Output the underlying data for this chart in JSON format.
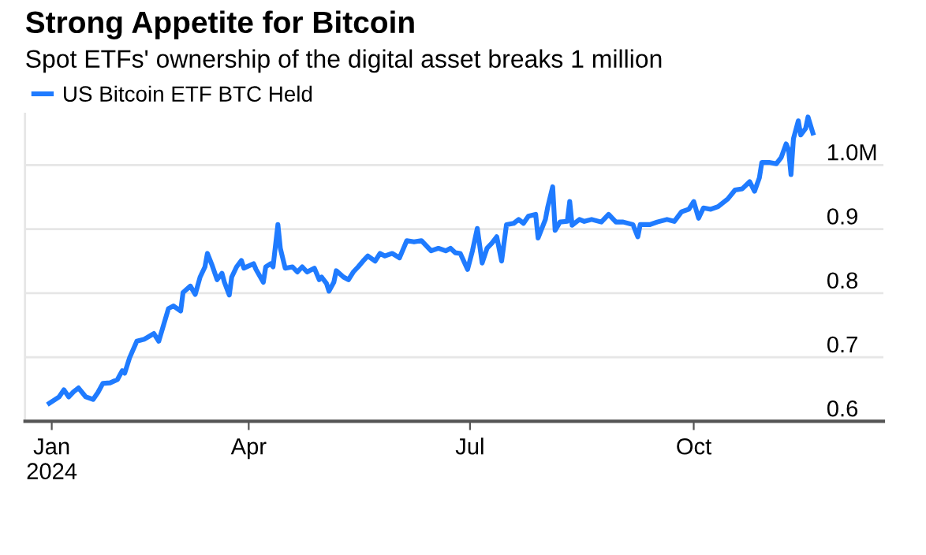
{
  "chart_data": {
    "type": "line",
    "title": "Strong Appetite for Bitcoin",
    "subtitle": "Spot ETFs' ownership of the digital asset breaks 1 million",
    "x": [
      "2024-01-10",
      "2024-01-14",
      "2024-01-16",
      "2024-01-18",
      "2024-01-20",
      "2024-01-22",
      "2024-01-25",
      "2024-01-28",
      "2024-01-30",
      "2024-02-01",
      "2024-02-04",
      "2024-02-07",
      "2024-02-09",
      "2024-02-10",
      "2024-02-12",
      "2024-02-15",
      "2024-02-18",
      "2024-02-22",
      "2024-02-24",
      "2024-02-28",
      "2024-03-01",
      "2024-03-04",
      "2024-03-05",
      "2024-03-08",
      "2024-03-10",
      "2024-03-12",
      "2024-03-14",
      "2024-03-15",
      "2024-03-17",
      "2024-03-19",
      "2024-03-21",
      "2024-03-22",
      "2024-03-24",
      "2024-03-25",
      "2024-03-27",
      "2024-03-29",
      "2024-03-30",
      "2024-04-03",
      "2024-04-04",
      "2024-04-07",
      "2024-04-08",
      "2024-04-10",
      "2024-04-11",
      "2024-04-13",
      "2024-04-14",
      "2024-04-16",
      "2024-04-19",
      "2024-04-21",
      "2024-04-23",
      "2024-04-25",
      "2024-04-28",
      "2024-04-30",
      "2024-05-01",
      "2024-05-03",
      "2024-05-04",
      "2024-05-06",
      "2024-05-07",
      "2024-05-10",
      "2024-05-12",
      "2024-05-14",
      "2024-05-16",
      "2024-05-18",
      "2024-05-20",
      "2024-05-23",
      "2024-05-25",
      "2024-05-27",
      "2024-05-30",
      "2024-06-02",
      "2024-06-05",
      "2024-06-08",
      "2024-06-11",
      "2024-06-13",
      "2024-06-15",
      "2024-06-18",
      "2024-06-21",
      "2024-06-23",
      "2024-06-25",
      "2024-06-27",
      "2024-06-30",
      "2024-07-02",
      "2024-07-04",
      "2024-07-06",
      "2024-07-08",
      "2024-07-10",
      "2024-07-12",
      "2024-07-14",
      "2024-07-16",
      "2024-07-19",
      "2024-07-21",
      "2024-07-23",
      "2024-07-25",
      "2024-07-28",
      "2024-07-29",
      "2024-08-01",
      "2024-08-02",
      "2024-08-04",
      "2024-08-05",
      "2024-08-07",
      "2024-08-10",
      "2024-08-11",
      "2024-08-12",
      "2024-08-15",
      "2024-08-17",
      "2024-08-20",
      "2024-08-24",
      "2024-08-27",
      "2024-08-30",
      "2024-09-02",
      "2024-09-06",
      "2024-09-08",
      "2024-09-09",
      "2024-09-13",
      "2024-09-16",
      "2024-09-20",
      "2024-09-23",
      "2024-09-26",
      "2024-09-29",
      "2024-10-01",
      "2024-10-03",
      "2024-10-05",
      "2024-10-08",
      "2024-10-11",
      "2024-10-15",
      "2024-10-18",
      "2024-10-21",
      "2024-10-24",
      "2024-10-26",
      "2024-10-28",
      "2024-10-29",
      "2024-11-01",
      "2024-11-04",
      "2024-11-06",
      "2024-11-08",
      "2024-11-09",
      "2024-11-10",
      "2024-11-11",
      "2024-11-13",
      "2024-11-14",
      "2024-11-16",
      "2024-11-17",
      "2024-11-19"
    ],
    "series": [
      {
        "name": "US Bitcoin ETF BTC Held",
        "color": "#1f7bff",
        "values": [
          0.628,
          0.638,
          0.649,
          0.638,
          0.646,
          0.652,
          0.638,
          0.634,
          0.645,
          0.659,
          0.66,
          0.665,
          0.679,
          0.675,
          0.699,
          0.725,
          0.728,
          0.737,
          0.725,
          0.776,
          0.78,
          0.772,
          0.801,
          0.811,
          0.798,
          0.825,
          0.841,
          0.862,
          0.843,
          0.821,
          0.831,
          0.817,
          0.797,
          0.825,
          0.841,
          0.851,
          0.839,
          0.846,
          0.837,
          0.817,
          0.841,
          0.846,
          0.841,
          0.907,
          0.87,
          0.839,
          0.841,
          0.833,
          0.841,
          0.833,
          0.839,
          0.821,
          0.825,
          0.815,
          0.803,
          0.817,
          0.835,
          0.825,
          0.821,
          0.833,
          0.841,
          0.85,
          0.858,
          0.85,
          0.862,
          0.858,
          0.862,
          0.855,
          0.882,
          0.88,
          0.882,
          0.874,
          0.866,
          0.87,
          0.866,
          0.87,
          0.863,
          0.862,
          0.837,
          0.866,
          0.901,
          0.847,
          0.87,
          0.878,
          0.888,
          0.85,
          0.907,
          0.909,
          0.915,
          0.909,
          0.92,
          0.923,
          0.886,
          0.915,
          0.935,
          0.966,
          0.898,
          0.911,
          0.912,
          0.943,
          0.906,
          0.915,
          0.912,
          0.915,
          0.911,
          0.923,
          0.911,
          0.911,
          0.907,
          0.888,
          0.907,
          0.907,
          0.911,
          0.915,
          0.912,
          0.927,
          0.931,
          0.943,
          0.917,
          0.933,
          0.931,
          0.935,
          0.947,
          0.961,
          0.963,
          0.974,
          0.959,
          0.98,
          1.004,
          1.004,
          1.002,
          1.012,
          1.033,
          1.024,
          0.985,
          1.041,
          1.069,
          1.047,
          1.057,
          1.075,
          1.05
        ]
      }
    ],
    "xlim": [
      "2023-12-31",
      "2024-12-18"
    ],
    "xticks": [
      {
        "value": "2024-01-11",
        "label": "Jan\n2024"
      },
      {
        "value": "2024-04-01",
        "label": "Apr"
      },
      {
        "value": "2024-07-01",
        "label": "Jul"
      },
      {
        "value": "2024-10-01",
        "label": "Oct"
      }
    ],
    "ylim": [
      0.6,
      1.08
    ],
    "yticks": [
      0.6,
      0.7,
      0.8,
      0.9,
      {
        "value": 1.0,
        "label": "1.0M"
      }
    ],
    "grid": "y",
    "legend": "top left",
    "marker": "none",
    "line_style": "solid"
  }
}
